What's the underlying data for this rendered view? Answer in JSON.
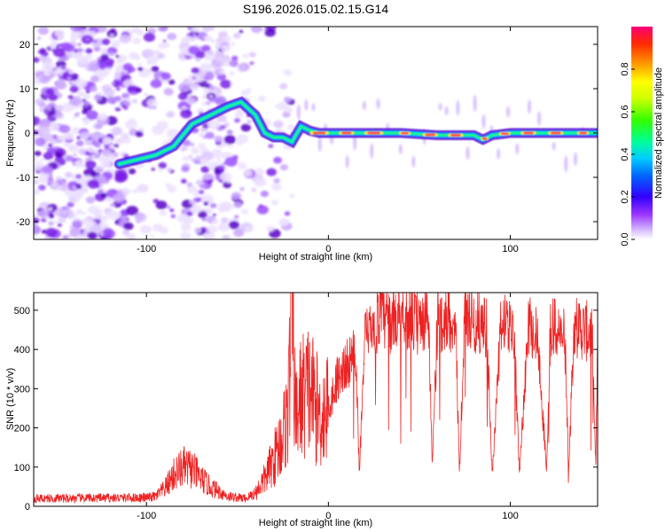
{
  "title": "S196.2026.015.02.15.G14",
  "chart_data": [
    {
      "type": "heatmap",
      "xlabel": "Height of straight line (km)",
      "ylabel": "Frequency (Hz)",
      "xlim": [
        -162,
        148
      ],
      "ylim": [
        -24,
        24
      ],
      "xticks": [
        -100,
        0,
        100
      ],
      "yticks": [
        -20,
        -10,
        0,
        10,
        20
      ],
      "colorbar": {
        "label": "Normalized spectral amplitude",
        "range": [
          0.0,
          1.0
        ],
        "ticks": [
          "0.0",
          "0.2",
          "0.4",
          "0.6",
          "0.8"
        ],
        "colors": [
          "#ffffff",
          "#cc99ff",
          "#6600cc",
          "#0000ff",
          "#00ccff",
          "#00ff66",
          "#66ff00",
          "#ffff00",
          "#ff8800",
          "#ff0066"
        ]
      },
      "ridge": {
        "x": [
          -115,
          -105,
          -95,
          -85,
          -75,
          -65,
          -55,
          -48,
          -40,
          -35,
          -30,
          -25,
          -20,
          -15,
          -10,
          -5,
          0,
          20,
          40,
          60,
          80,
          85,
          90,
          100,
          120,
          148
        ],
        "frequency": [
          -7,
          -6,
          -5,
          -3,
          2,
          4,
          6,
          7,
          4,
          0,
          -1,
          -1,
          -2,
          1.5,
          0.5,
          0,
          0,
          0,
          0,
          -0.5,
          -0.5,
          -1.5,
          -0.5,
          0,
          0,
          0
        ]
      }
    },
    {
      "type": "line",
      "xlabel": "Height of straight line (km)",
      "ylabel": "SNR (10 * v/v)",
      "xlim": [
        -162,
        148
      ],
      "ylim": [
        0,
        545
      ],
      "xticks": [
        -100,
        0,
        100
      ],
      "yticks": [
        0,
        100,
        200,
        300,
        400,
        500
      ],
      "color": "#ee2222",
      "series": [
        {
          "name": "SNR",
          "x": [
            -162,
            -100,
            -95,
            -90,
            -85,
            -80,
            -75,
            -70,
            -65,
            -55,
            -45,
            -40,
            -35,
            -30,
            -25,
            -22,
            -20,
            -18,
            -15,
            -10,
            -5,
            0,
            5,
            10,
            15,
            17,
            20,
            25,
            28,
            35,
            40,
            45,
            50,
            55,
            57,
            60,
            65,
            70,
            72,
            75,
            80,
            87,
            90,
            95,
            102,
            105,
            110,
            115,
            120,
            122,
            125,
            130,
            132,
            135,
            140,
            145,
            147,
            148
          ],
          "values": [
            20,
            22,
            25,
            45,
            80,
            100,
            95,
            70,
            50,
            25,
            20,
            35,
            70,
            120,
            180,
            250,
            545,
            220,
            280,
            300,
            230,
            250,
            330,
            360,
            390,
            90,
            420,
            460,
            480,
            470,
            500,
            480,
            460,
            490,
            100,
            470,
            480,
            470,
            80,
            490,
            470,
            460,
            80,
            470,
            450,
            90,
            470,
            430,
            90,
            460,
            450,
            430,
            90,
            460,
            450,
            440,
            90,
            430
          ]
        }
      ]
    }
  ]
}
